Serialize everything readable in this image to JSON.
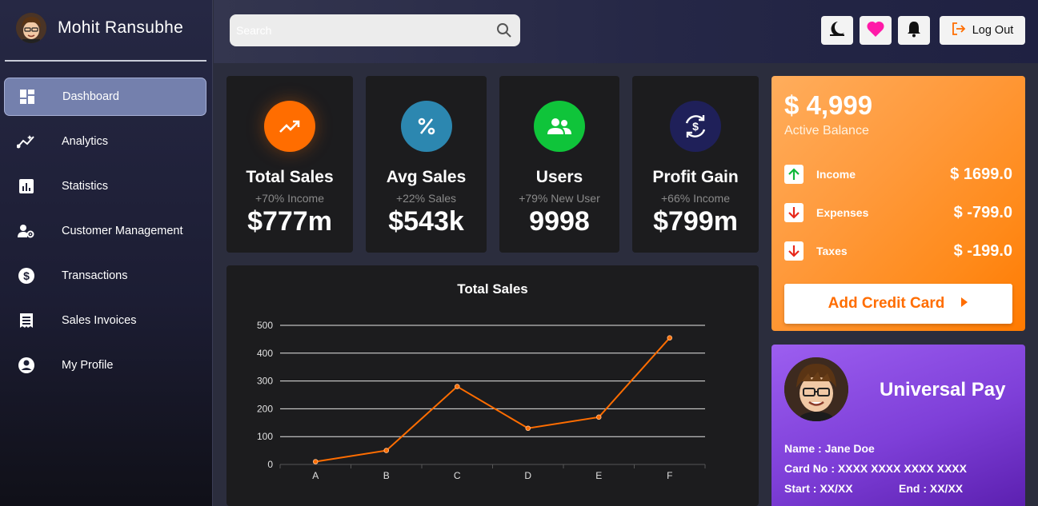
{
  "sidebar": {
    "user_name": "Mohit Ransubhe",
    "items": [
      {
        "label": "Dashboard",
        "icon": "dashboard-icon",
        "active": true
      },
      {
        "label": "Analytics",
        "icon": "analytics-icon",
        "active": false
      },
      {
        "label": "Statistics",
        "icon": "statistics-icon",
        "active": false
      },
      {
        "label": "Customer Management",
        "icon": "customer-management-icon",
        "active": false
      },
      {
        "label": "Transactions",
        "icon": "dollar-circle-icon",
        "active": false
      },
      {
        "label": "Sales Invoices",
        "icon": "receipt-icon",
        "active": false
      },
      {
        "label": "My Profile",
        "icon": "account-circle-icon",
        "active": false
      }
    ]
  },
  "header": {
    "search_placeholder": "Search",
    "logout_label": "Log Out",
    "theme_icon": "moon-icon",
    "favorite_icon": "heart-icon",
    "notification_icon": "bell-icon"
  },
  "stats": [
    {
      "title": "Total Sales",
      "subtitle": "+70% Income",
      "value": "$777m",
      "icon": "trending-up-icon",
      "color": "#ff6d00"
    },
    {
      "title": "Avg Sales",
      "subtitle": "+22% Sales",
      "value": "$543k",
      "icon": "percent-icon",
      "color": "#2c87b0"
    },
    {
      "title": "Users",
      "subtitle": "+79% New User",
      "value": "9998",
      "icon": "users-icon",
      "color": "#0fc43a"
    },
    {
      "title": "Profit Gain",
      "subtitle": "+66% Income",
      "value": "$799m",
      "icon": "currency-exchange-icon",
      "color": "#1f2059"
    }
  ],
  "chart_data": {
    "type": "line",
    "title": "Total Sales",
    "categories": [
      "A",
      "B",
      "C",
      "D",
      "E",
      "F"
    ],
    "values": [
      10,
      50,
      280,
      130,
      170,
      455
    ],
    "yticks": [
      0,
      100,
      200,
      300,
      400,
      500
    ],
    "ylim": [
      0,
      500
    ],
    "grid": true,
    "line_color": "#ff6d00"
  },
  "balance": {
    "amount": "$ 4,999",
    "label": "Active Balance",
    "rows": [
      {
        "name": "Income",
        "value": "$ 1699.0",
        "icon": "arrow-up-icon"
      },
      {
        "name": "Expenses",
        "value": "$ -799.0",
        "icon": "arrow-down-icon"
      },
      {
        "name": "Taxes",
        "value": "$ -199.0",
        "icon": "arrow-down-icon"
      }
    ],
    "add_card_label": "Add Credit Card"
  },
  "pay_card": {
    "title": "Universal Pay",
    "name_line": "Name : Jane Doe",
    "card_no_line": "Card No : XXXX XXXX XXXX XXXX",
    "start_line": "Start : XX/XX",
    "end_line": "End : XX/XX"
  }
}
